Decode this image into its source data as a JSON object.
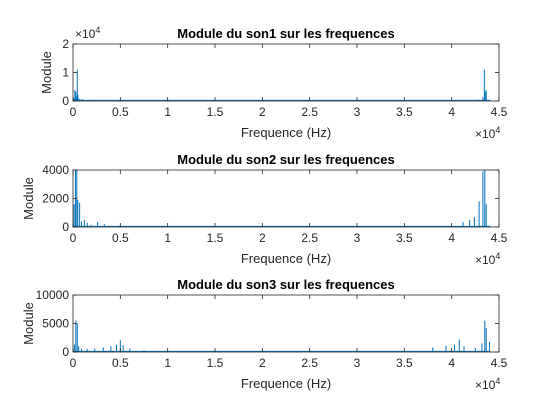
{
  "chart_data": [
    {
      "type": "line",
      "title": "Module du son1 sur les frequences",
      "xlabel": "Frequence (Hz)",
      "ylabel": "Module",
      "xlim": [
        0,
        45000
      ],
      "ylim": [
        0,
        20000
      ],
      "x_ticks": [
        0,
        5000,
        10000,
        15000,
        20000,
        25000,
        30000,
        35000,
        40000,
        45000
      ],
      "x_tick_labels": [
        "0",
        "0.5",
        "1",
        "1.5",
        "2",
        "2.5",
        "3",
        "3.5",
        "4",
        "4.5"
      ],
      "x_exponent": "×10",
      "x_exponent_power": "4",
      "y_ticks": [
        0,
        10000,
        20000
      ],
      "y_tick_labels": [
        "0",
        "1",
        "2"
      ],
      "y_exponent": "×10",
      "y_exponent_power": "4",
      "color": "#0072bd",
      "grid": false,
      "peaks": [
        {
          "x": 100,
          "y": 900
        },
        {
          "x": 200,
          "y": 3800
        },
        {
          "x": 300,
          "y": 3300
        },
        {
          "x": 380,
          "y": 1500
        },
        {
          "x": 450,
          "y": 11000
        },
        {
          "x": 520,
          "y": 2200
        },
        {
          "x": 650,
          "y": 800
        },
        {
          "x": 800,
          "y": 500
        },
        {
          "x": 1000,
          "y": 700
        },
        {
          "x": 1300,
          "y": 350
        },
        {
          "x": 1700,
          "y": 300
        },
        {
          "x": 2200,
          "y": 250
        },
        {
          "x": 42300,
          "y": 200
        },
        {
          "x": 42900,
          "y": 450
        },
        {
          "x": 43300,
          "y": 1300
        },
        {
          "x": 43450,
          "y": 11000
        },
        {
          "x": 43550,
          "y": 3300
        },
        {
          "x": 43650,
          "y": 3800
        }
      ]
    },
    {
      "type": "line",
      "title": "Module du son2 sur les frequences",
      "xlabel": "Frequence (Hz)",
      "ylabel": "Module",
      "xlim": [
        0,
        45000
      ],
      "ylim": [
        0,
        4000
      ],
      "x_ticks": [
        0,
        5000,
        10000,
        15000,
        20000,
        25000,
        30000,
        35000,
        40000,
        45000
      ],
      "x_tick_labels": [
        "0",
        "0.5",
        "1",
        "1.5",
        "2",
        "2.5",
        "3",
        "3.5",
        "4",
        "4.5"
      ],
      "x_exponent": "×10",
      "x_exponent_power": "4",
      "y_ticks": [
        0,
        2000,
        4000
      ],
      "y_tick_labels": [
        "0",
        "2000",
        "4000"
      ],
      "color": "#0072bd",
      "grid": false,
      "peaks": [
        {
          "x": 120,
          "y": 1600
        },
        {
          "x": 260,
          "y": 4000
        },
        {
          "x": 400,
          "y": 4000
        },
        {
          "x": 500,
          "y": 1900
        },
        {
          "x": 700,
          "y": 1700
        },
        {
          "x": 900,
          "y": 400
        },
        {
          "x": 1200,
          "y": 500
        },
        {
          "x": 1500,
          "y": 300
        },
        {
          "x": 1900,
          "y": 150
        },
        {
          "x": 2600,
          "y": 350
        },
        {
          "x": 3300,
          "y": 200
        },
        {
          "x": 5000,
          "y": 120
        },
        {
          "x": 41200,
          "y": 350
        },
        {
          "x": 41900,
          "y": 500
        },
        {
          "x": 42400,
          "y": 700
        },
        {
          "x": 42900,
          "y": 1800
        },
        {
          "x": 43300,
          "y": 3900
        },
        {
          "x": 43500,
          "y": 4000
        },
        {
          "x": 43650,
          "y": 1600
        }
      ]
    },
    {
      "type": "line",
      "title": "Module du son3 sur les frequences",
      "xlabel": "Frequence (Hz)",
      "ylabel": "Module",
      "xlim": [
        0,
        45000
      ],
      "ylim": [
        0,
        10000
      ],
      "x_ticks": [
        0,
        5000,
        10000,
        15000,
        20000,
        25000,
        30000,
        35000,
        40000,
        45000
      ],
      "x_tick_labels": [
        "0",
        "0.5",
        "1",
        "1.5",
        "2",
        "2.5",
        "3",
        "3.5",
        "4",
        "4.5"
      ],
      "x_exponent": "×10",
      "x_exponent_power": "4",
      "y_ticks": [
        0,
        5000,
        10000
      ],
      "y_tick_labels": [
        "0",
        "5000",
        "10000"
      ],
      "color": "#0072bd",
      "grid": false,
      "peaks": [
        {
          "x": 150,
          "y": 1300
        },
        {
          "x": 300,
          "y": 5500
        },
        {
          "x": 450,
          "y": 5000
        },
        {
          "x": 600,
          "y": 1000
        },
        {
          "x": 900,
          "y": 600
        },
        {
          "x": 1500,
          "y": 500
        },
        {
          "x": 2300,
          "y": 600
        },
        {
          "x": 3200,
          "y": 800
        },
        {
          "x": 4000,
          "y": 1000
        },
        {
          "x": 4600,
          "y": 1300
        },
        {
          "x": 5000,
          "y": 2100
        },
        {
          "x": 5300,
          "y": 1200
        },
        {
          "x": 6000,
          "y": 600
        },
        {
          "x": 7500,
          "y": 300
        },
        {
          "x": 38000,
          "y": 800
        },
        {
          "x": 39400,
          "y": 1100
        },
        {
          "x": 40300,
          "y": 1300
        },
        {
          "x": 40800,
          "y": 2200
        },
        {
          "x": 41300,
          "y": 1000
        },
        {
          "x": 42500,
          "y": 700
        },
        {
          "x": 43200,
          "y": 1500
        },
        {
          "x": 43500,
          "y": 5500
        },
        {
          "x": 43650,
          "y": 4200
        },
        {
          "x": 44000,
          "y": 1800
        }
      ]
    }
  ]
}
